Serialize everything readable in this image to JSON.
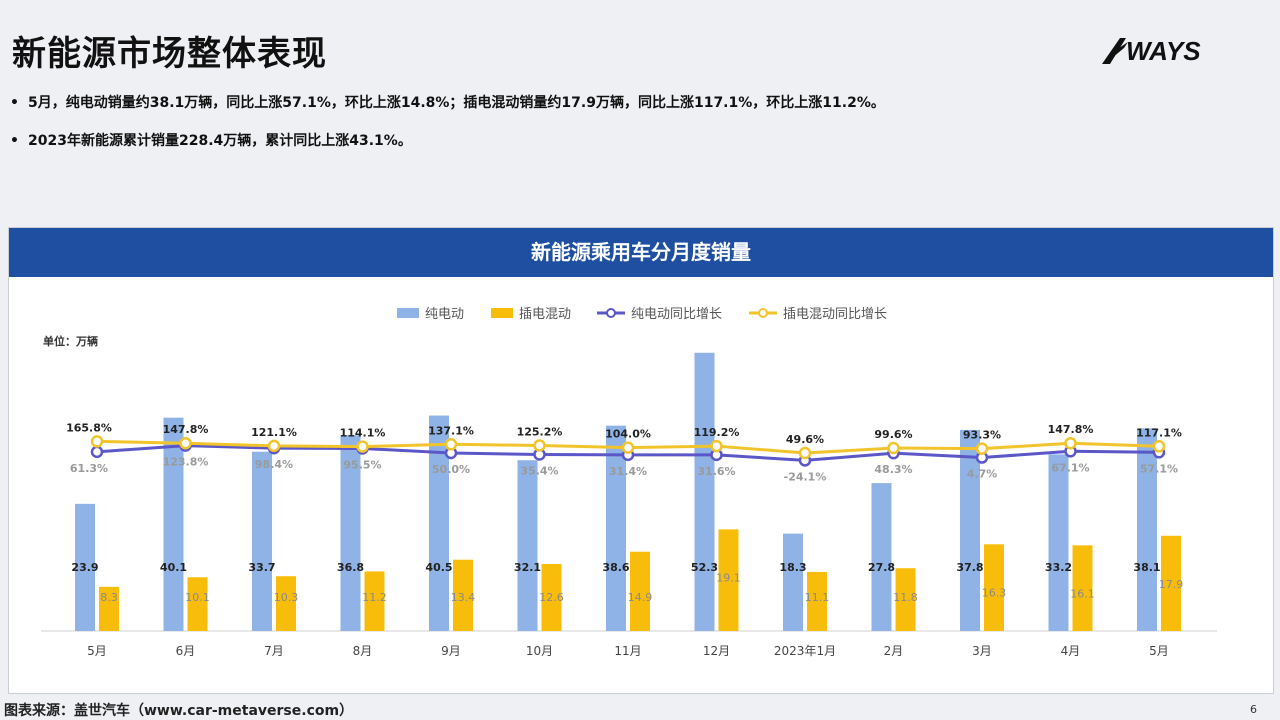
{
  "page": {
    "title": "新能源市场整体表现",
    "logo_text": "WAYS",
    "bullets": [
      "5月，纯电动销量约38.1万辆，同比上涨57.1%，环比上涨14.8%；插电混动销量约17.9万辆，同比上涨117.1%，环比上涨11.2%。",
      "2023年新能源累计销量228.4万辆，累计同比上涨43.1%。"
    ],
    "bullet_marker": "•",
    "source": "图表来源：盖世汽车（www.car-metaverse.com）",
    "page_number": "6"
  },
  "colors": {
    "header_bg": "#1f4fa0",
    "bev_bar": "#8fb3e6",
    "phev_bar": "#f8bd0a",
    "bev_line": "#5b57c8",
    "phev_line": "#f2c42c"
  },
  "chart_data": {
    "type": "bar",
    "title": "新能源乘用车分月度销量",
    "unit_label": "单位：万辆",
    "categories": [
      "5月",
      "6月",
      "7月",
      "8月",
      "9月",
      "10月",
      "11月",
      "12月",
      "2023年1月",
      "2月",
      "3月",
      "4月",
      "5月"
    ],
    "series": [
      {
        "name": "纯电动",
        "kind": "bar",
        "values": [
          23.9,
          40.1,
          33.7,
          36.8,
          40.5,
          32.1,
          38.6,
          52.3,
          18.3,
          27.8,
          37.8,
          33.2,
          38.1
        ]
      },
      {
        "name": "插电混动",
        "kind": "bar",
        "values": [
          8.3,
          10.1,
          10.3,
          11.2,
          13.4,
          12.6,
          14.9,
          19.1,
          11.1,
          11.8,
          16.3,
          16.1,
          17.9
        ]
      },
      {
        "name": "纯电动同比增长",
        "kind": "line",
        "values": [
          61.3,
          123.8,
          98.4,
          95.5,
          50.0,
          35.4,
          31.4,
          31.6,
          -24.1,
          48.3,
          4.7,
          67.1,
          57.1
        ],
        "labels": [
          "61.3%",
          "123.8%",
          "98.4%",
          "95.5%",
          "50.0%",
          "35.4%",
          "31.4%",
          "31.6%",
          "-24.1%",
          "48.3%",
          "4.7%",
          "67.1%",
          "57.1%"
        ]
      },
      {
        "name": "插电混动同比增长",
        "kind": "line",
        "values": [
          165.8,
          147.8,
          121.1,
          114.1,
          137.1,
          125.2,
          104.0,
          119.2,
          49.6,
          99.6,
          93.3,
          147.8,
          117.1
        ],
        "labels": [
          "165.8%",
          "147.8%",
          "121.1%",
          "114.1%",
          "137.1%",
          "125.2%",
          "104.0%",
          "119.2%",
          "49.6%",
          "99.6%",
          "93.3%",
          "147.8%",
          "117.1%"
        ]
      }
    ],
    "legend_position": "top-center",
    "grid": false
  }
}
